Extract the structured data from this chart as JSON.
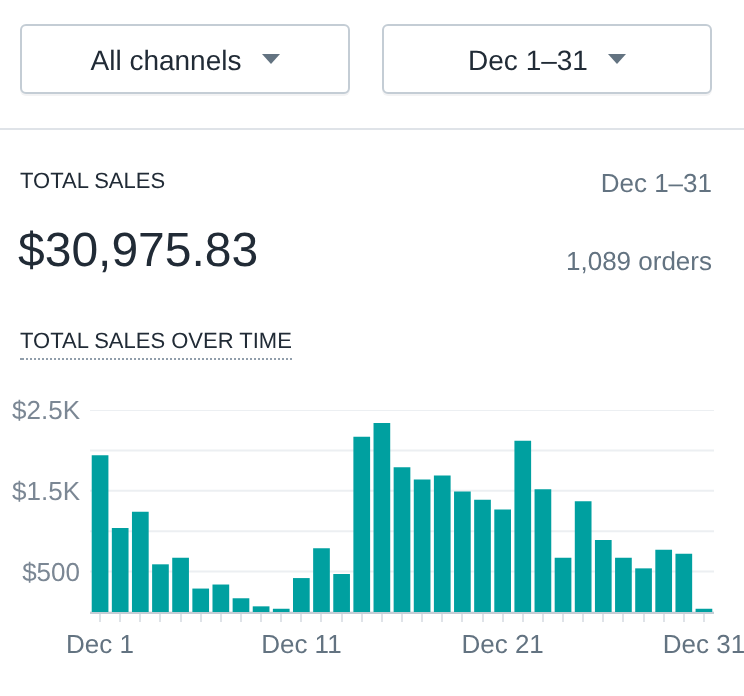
{
  "chart_data": [
    {
      "type": "other",
      "title": "TOTAL SALES",
      "annotations": [
        "All channels",
        "Dec 1–31",
        "Dec 1–31",
        "$30,975.83",
        "1,089 orders"
      ]
    },
    {
      "type": "bar",
      "title": "TOTAL SALES OVER TIME",
      "categories": [
        "Dec 1",
        null,
        null,
        null,
        null,
        null,
        null,
        null,
        null,
        null,
        "Dec 11",
        null,
        null,
        null,
        null,
        null,
        null,
        null,
        null,
        null,
        "Dec 21",
        null,
        null,
        null,
        null,
        null,
        null,
        null,
        null,
        null,
        "Dec 31"
      ],
      "values": [
        1940,
        1040,
        1240,
        590,
        670,
        290,
        340,
        170,
        70,
        40,
        420,
        790,
        470,
        2170,
        2340,
        1790,
        1640,
        1690,
        1490,
        1390,
        1270,
        2120,
        1520,
        670,
        1370,
        890,
        670,
        540,
        770,
        720,
        40
      ],
      "color": "#00a0a0",
      "ylim": [
        0,
        2500
      ],
      "yticks": [
        {
          "value": 0,
          "label": null
        },
        {
          "value": 500,
          "label": "$500"
        },
        {
          "value": 1000,
          "label": null
        },
        {
          "value": 1500,
          "label": "$1.5K"
        },
        {
          "value": 2000,
          "label": null
        },
        {
          "value": 2500,
          "label": "$2.5K"
        }
      ],
      "grid": "y"
    }
  ]
}
